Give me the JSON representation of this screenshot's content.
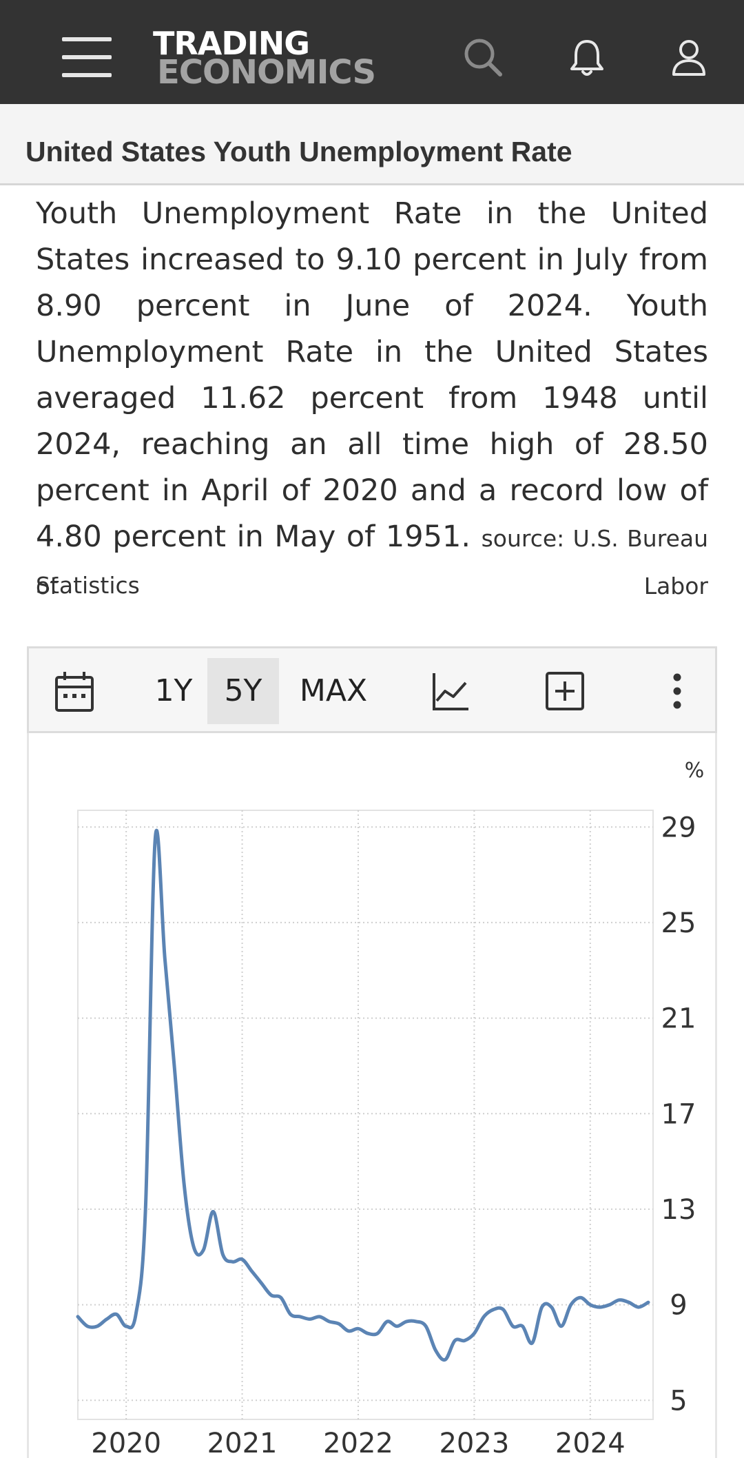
{
  "header": {
    "logo_line1": "TRADING",
    "logo_line2": "ECONOMICS",
    "icons": [
      "menu-icon",
      "search-icon",
      "bell-icon",
      "user-icon"
    ],
    "bg_color": "#333333"
  },
  "page": {
    "title": "United States Youth Unemployment Rate"
  },
  "description": {
    "text": "Youth Unemployment Rate in the United States increased to 9.10 percent in July from 8.90 percent in June of 2024. Youth Unemployment Rate in the United States averaged 11.62 percent from 1948 until 2024, reaching an all time high of 28.50 percent in April of 2020 and a record low of 4.80 percent in May of 1951.",
    "source_head": "source: U.S. Bureau of Labor",
    "source_tail": "Statistics"
  },
  "toolbar": {
    "calendar_icon": "calendar-icon",
    "ranges": [
      "1Y",
      "5Y",
      "MAX"
    ],
    "active_range": "5Y",
    "chart_type_icon": "line-chart-icon",
    "compare_icon": "plus-box-icon",
    "more_icon": "more-vertical-icon"
  },
  "chart_data": {
    "type": "line",
    "unit": "%",
    "ylim": [
      4.2,
      29.7
    ],
    "yticks": [
      29,
      25,
      21,
      17,
      13,
      9,
      5
    ],
    "xticks": [
      "2020",
      "2021",
      "2022",
      "2023",
      "2024"
    ],
    "grid": true,
    "line_color": "#5b84b4",
    "series": [
      {
        "x": [
          "2019-08",
          "2019-09",
          "2019-10",
          "2019-11",
          "2019-12",
          "2020-01",
          "2020-02",
          "2020-03",
          "2020-04",
          "2020-05",
          "2020-06",
          "2020-07",
          "2020-08",
          "2020-09",
          "2020-10",
          "2020-11",
          "2020-12",
          "2021-01",
          "2021-02",
          "2021-03",
          "2021-04",
          "2021-05",
          "2021-06",
          "2021-07",
          "2021-08",
          "2021-09",
          "2021-10",
          "2021-11",
          "2021-12",
          "2022-01",
          "2022-02",
          "2022-03",
          "2022-04",
          "2022-05",
          "2022-06",
          "2022-07",
          "2022-08",
          "2022-09",
          "2022-10",
          "2022-11",
          "2022-12",
          "2023-01",
          "2023-02",
          "2023-03",
          "2023-04",
          "2023-05",
          "2023-06",
          "2023-07",
          "2023-08",
          "2023-09",
          "2023-10",
          "2023-11",
          "2023-12",
          "2024-01",
          "2024-02",
          "2024-03",
          "2024-04",
          "2024-05",
          "2024-06",
          "2024-07"
        ],
        "values": [
          8.5,
          8.1,
          8.1,
          8.4,
          8.6,
          8.1,
          8.6,
          13.0,
          28.5,
          23.5,
          18.9,
          14.0,
          11.4,
          11.3,
          12.9,
          11.1,
          10.8,
          10.9,
          10.4,
          9.9,
          9.4,
          9.3,
          8.6,
          8.5,
          8.4,
          8.5,
          8.3,
          8.2,
          7.9,
          8.0,
          7.8,
          7.8,
          8.3,
          8.1,
          8.3,
          8.3,
          8.1,
          7.1,
          6.7,
          7.5,
          7.5,
          7.8,
          8.5,
          8.8,
          8.8,
          8.1,
          8.1,
          7.4,
          8.9,
          8.9,
          8.1,
          9.0,
          9.3,
          9.0,
          8.9,
          9.0,
          9.2,
          9.1,
          8.9,
          9.1
        ]
      }
    ]
  }
}
